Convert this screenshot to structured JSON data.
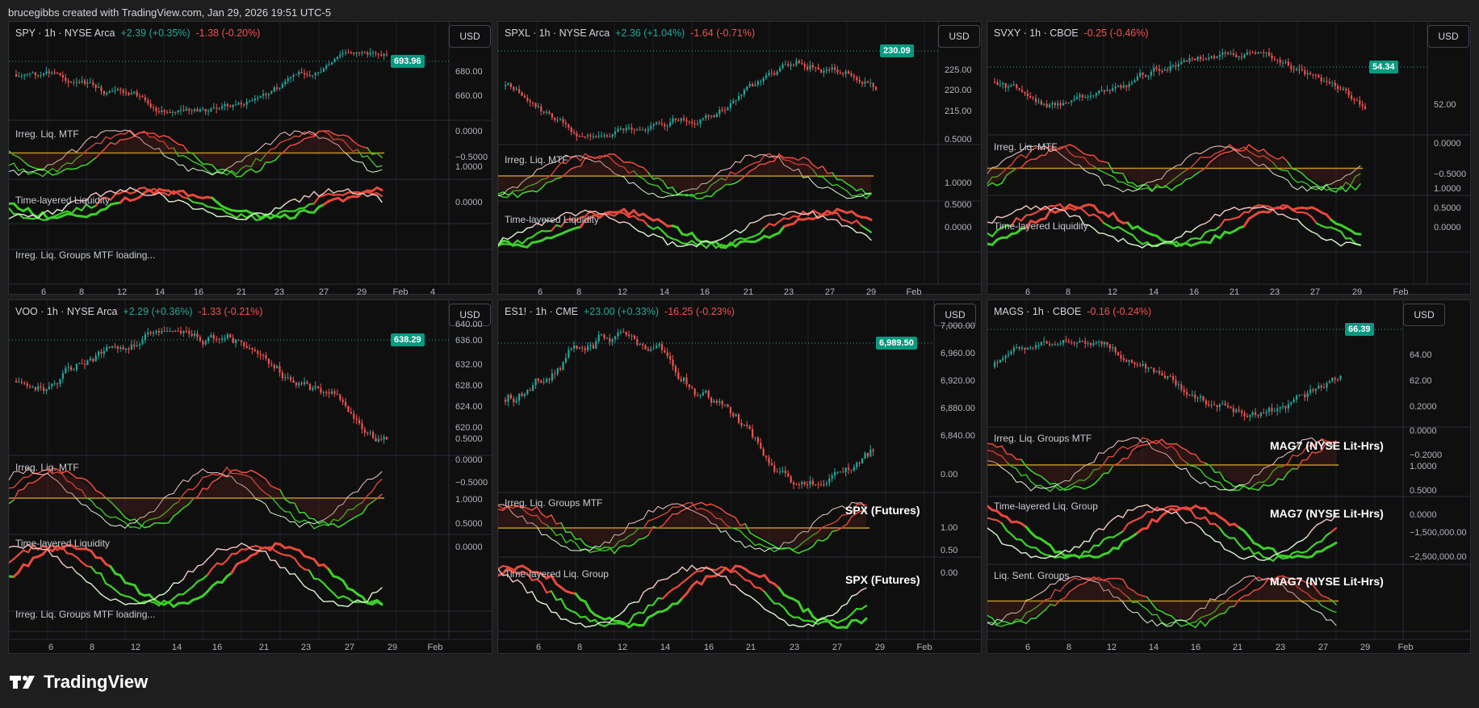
{
  "header": {
    "text": "brucegibbs created with TradingView.com, Jan 29, 2026 19:51 UTC-5"
  },
  "brand": {
    "name": "TradingView"
  },
  "currency": "USD",
  "panels": [
    {
      "symbol": "SPY · 1h · NYSE Arca",
      "change_up": "+2.39 (+0.35%)",
      "change_dn": "-1.38 (-0.20%)",
      "price": "693.96",
      "price_yticks": [
        "680.00",
        "660.00"
      ],
      "indicators": [
        {
          "label": "Irreg. Liq. MTF",
          "yticks": [
            "0.0000",
            "−0.5000"
          ]
        },
        {
          "label": "Time-layered Liquidity",
          "yticks": [
            "1.0000",
            "0.0000"
          ]
        }
      ],
      "loading": "Irreg. Liq. Groups MTF loading...",
      "x_labels": [
        "6",
        "8",
        "12",
        "14",
        "16",
        "21",
        "23",
        "27",
        "29",
        "Feb",
        "4"
      ]
    },
    {
      "symbol": "SPXL · 1h · NYSE Arca",
      "change_up": "+2.36 (+1.04%)",
      "change_dn": "-1.64 (-0.71%)",
      "price": "230.09",
      "price_yticks": [
        "225.00",
        "220.00",
        "215.00"
      ],
      "indicators": [
        {
          "label": "Irreg. Liq. MTF",
          "yticks": [
            "0.5000"
          ]
        },
        {
          "label": "Time-layered Liquidity",
          "yticks": [
            "1.0000",
            "0.5000",
            "0.0000"
          ]
        }
      ],
      "x_labels": [
        "6",
        "8",
        "12",
        "14",
        "16",
        "21",
        "23",
        "27",
        "29",
        "Feb"
      ]
    },
    {
      "symbol": "SVXY · 1h · CBOE",
      "change_up": "",
      "change_dn": "-0.25 (-0.46%)",
      "price": "54.34",
      "price_yticks": [
        "52.00"
      ],
      "indicators": [
        {
          "label": "Irreg. Liq. MTF",
          "yticks": [
            "0.0000",
            "−0.5000"
          ]
        },
        {
          "label": "Time-layered Liquidity",
          "yticks": [
            "1.0000",
            "0.5000",
            "0.0000"
          ]
        }
      ],
      "x_labels": [
        "6",
        "8",
        "12",
        "14",
        "16",
        "21",
        "23",
        "27",
        "29",
        "Feb"
      ]
    },
    {
      "symbol": "VOO · 1h · NYSE Arca",
      "change_up": "+2.29 (+0.36%)",
      "change_dn": "-1.33 (-0.21%)",
      "price": "638.29",
      "price_yticks": [
        "640.00",
        "636.00",
        "632.00",
        "628.00",
        "624.00",
        "620.00"
      ],
      "indicators": [
        {
          "label": "Irreg. Liq. MTF",
          "yticks": [
            "0.5000",
            "0.0000",
            "−0.5000"
          ]
        },
        {
          "label": "Time-layered Liquidity",
          "yticks": [
            "1.0000",
            "0.5000",
            "0.0000"
          ]
        }
      ],
      "loading": "Irreg. Liq. Groups MTF loading...",
      "x_labels": [
        "6",
        "8",
        "12",
        "14",
        "16",
        "21",
        "23",
        "27",
        "29",
        "Feb"
      ]
    },
    {
      "symbol": "ES1! · 1h · CME",
      "change_up": "+23.00 (+0.33%)",
      "change_dn": "-16.25 (-0.23%)",
      "price": "6,989.50",
      "price_yticks": [
        "7,000.00",
        "6,960.00",
        "6,920.00",
        "6,880.00",
        "6,840.00"
      ],
      "indicators": [
        {
          "label": "Irreg. Liq. Groups MTF",
          "overlay": "SPX (Futures)",
          "yticks": [
            "0.00"
          ]
        },
        {
          "label": "Time-layered Liq. Group",
          "overlay": "SPX (Futures)",
          "yticks": [
            "1.00",
            "0.50",
            "0.00"
          ]
        }
      ],
      "x_labels": [
        "6",
        "8",
        "12",
        "14",
        "16",
        "21",
        "23",
        "27",
        "29",
        "Feb"
      ]
    },
    {
      "symbol": "MAGS · 1h · CBOE",
      "change_up": "",
      "change_dn": "-0.16 (-0.24%)",
      "price": "66.39",
      "price_yticks": [
        "64.00",
        "62.00"
      ],
      "indicators": [
        {
          "label": "Irreg. Liq. Groups MTF",
          "overlay": "MAG7 (NYSE Lit-Hrs)",
          "yticks": [
            "0.2000",
            "0.0000",
            "−0.2000"
          ]
        },
        {
          "label": "Time-layered Liq. Group",
          "overlay": "MAG7 (NYSE Lit-Hrs)",
          "yticks": [
            "1.0000",
            "0.5000",
            "0.0000"
          ]
        },
        {
          "label": "Liq. Sent. Groups",
          "overlay": "MAG7 (NYSE Lit-Hrs)",
          "yticks": [
            "−1,500,000.00",
            "−2,500,000.00"
          ]
        }
      ],
      "x_labels": [
        "6",
        "8",
        "12",
        "14",
        "16",
        "21",
        "23",
        "27",
        "29",
        "Feb"
      ]
    }
  ],
  "colors": {
    "up": "#26a69a",
    "down": "#ef5350",
    "zero_line": "#c9a227",
    "bg": "#0f0f0f",
    "frame": "#1e1e1e"
  }
}
